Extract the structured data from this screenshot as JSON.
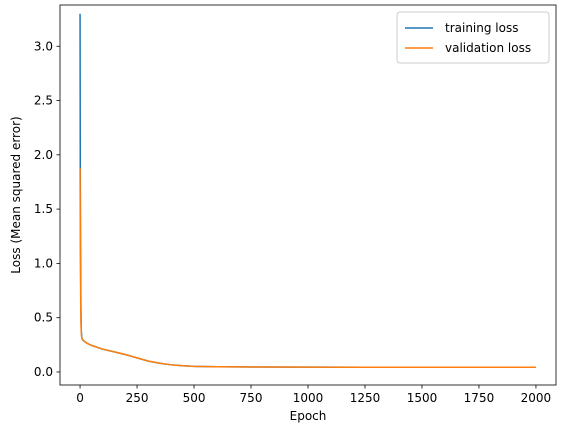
{
  "chart_data": {
    "type": "line",
    "title": "",
    "xlabel": "Epoch",
    "ylabel": "Loss (Mean squared error)",
    "xlim": [
      -88,
      2088
    ],
    "ylim": [
      -0.12,
      3.38
    ],
    "xticks": [
      0,
      250,
      500,
      750,
      1000,
      1250,
      1500,
      1750,
      2000
    ],
    "yticks": [
      0.0,
      0.5,
      1.0,
      1.5,
      2.0,
      2.5,
      3.0
    ],
    "xtick_labels": [
      "0",
      "250",
      "500",
      "750",
      "1000",
      "1250",
      "1500",
      "1750",
      "2000"
    ],
    "ytick_labels": [
      "0.0",
      "0.5",
      "1.0",
      "1.5",
      "2.0",
      "2.5",
      "3.0"
    ],
    "grid": false,
    "legend_position": "top-right",
    "series": [
      {
        "name": "training loss",
        "color": "#1f77b4",
        "x": [
          0,
          1,
          2,
          3,
          4,
          5,
          6,
          8,
          10,
          15,
          20,
          30,
          50,
          100,
          150,
          200,
          250,
          300,
          350,
          400,
          450,
          500,
          600,
          700,
          800,
          1000,
          1250,
          1500,
          1750,
          2000
        ],
        "y": [
          3.3,
          1.85,
          1.2,
          0.8,
          0.55,
          0.42,
          0.36,
          0.32,
          0.3,
          0.29,
          0.28,
          0.265,
          0.245,
          0.21,
          0.185,
          0.16,
          0.13,
          0.1,
          0.08,
          0.066,
          0.057,
          0.051,
          0.048,
          0.047,
          0.046,
          0.045,
          0.044,
          0.044,
          0.043,
          0.043
        ]
      },
      {
        "name": "validation loss",
        "color": "#ff7f0e",
        "x": [
          0,
          1,
          2,
          3,
          4,
          5,
          6,
          8,
          10,
          15,
          20,
          30,
          50,
          100,
          150,
          200,
          250,
          300,
          350,
          400,
          450,
          500,
          600,
          700,
          800,
          1000,
          1250,
          1500,
          1750,
          2000
        ],
        "y": [
          1.88,
          1.3,
          0.9,
          0.62,
          0.46,
          0.38,
          0.34,
          0.31,
          0.3,
          0.29,
          0.28,
          0.265,
          0.245,
          0.21,
          0.185,
          0.16,
          0.13,
          0.1,
          0.08,
          0.066,
          0.057,
          0.051,
          0.048,
          0.047,
          0.046,
          0.045,
          0.044,
          0.044,
          0.043,
          0.043
        ]
      }
    ]
  }
}
